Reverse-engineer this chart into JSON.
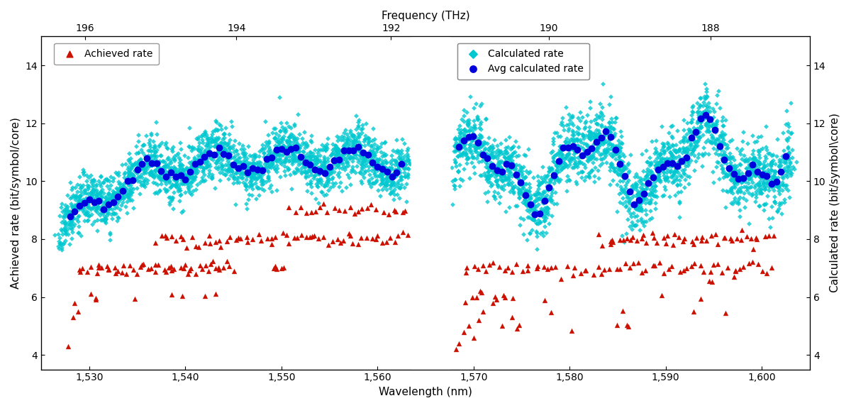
{
  "title_top": "Frequency (THz)",
  "xlabel": "Wavelength (nm)",
  "ylabel_left": "Achieved rate (bit/symbol/core)",
  "ylabel_right": "Calculated rate (bit/symbol\\core)",
  "ylim": [
    3.5,
    15
  ],
  "yticks": [
    4,
    6,
    8,
    10,
    12,
    14
  ],
  "xlim_wl": [
    1525,
    1605
  ],
  "freq_tick_labels": [
    "196",
    "194",
    "192",
    "190",
    "188"
  ],
  "freq_tick_thz": [
    196,
    194,
    192,
    190,
    188
  ],
  "wl_ticks": [
    1530,
    1540,
    1550,
    1560,
    1570,
    1580,
    1590,
    1600
  ],
  "gap_start": 1563.5,
  "gap_end": 1567.5,
  "band1_start": 1527,
  "band1_end": 1563,
  "band2_start": 1568,
  "band2_end": 1603,
  "legend1_label": "Achieved rate",
  "legend2_label": "Calculated rate",
  "legend3_label": "Avg calculated rate",
  "color_achieved": "#cc1100",
  "color_calculated": "#00c8d0",
  "color_avg": "#0000dd",
  "marker_achieved": "^",
  "marker_calculated": "D",
  "marker_avg": "o",
  "background_color": "#ffffff",
  "seed": 42,
  "c_nm_THz": 299792.458
}
